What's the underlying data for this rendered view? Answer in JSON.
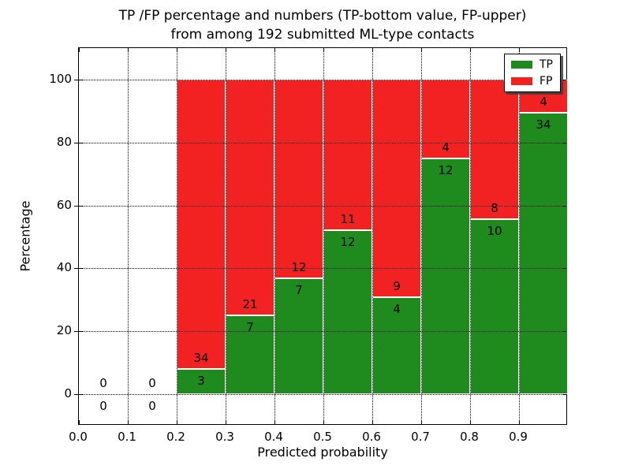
{
  "figure": {
    "title_line1": "TP /FP percentage and numbers (TP-bottom value, FP-upper)",
    "title_line2": "from among 192 submitted ML-type contacts"
  },
  "chart_data": {
    "type": "bar",
    "stacked": true,
    "normalized": "each bin scaled so TP+FP spans 0-100%, TP% = TP/(TP+FP)*100",
    "title": "TP /FP percentage and numbers (TP-bottom value, FP-upper)\nfrom among 192 submitted ML-type contacts",
    "xlabel": "Predicted probability",
    "ylabel": "Percentage",
    "xlim": [
      0.0,
      1.0
    ],
    "ylim": [
      -10,
      110
    ],
    "bin_width": 0.1,
    "xticks": [
      "0.0",
      "0.1",
      "0.2",
      "0.3",
      "0.4",
      "0.5",
      "0.6",
      "0.7",
      "0.8",
      "0.9"
    ],
    "yticks": [
      "0",
      "20",
      "40",
      "60",
      "80",
      "100"
    ],
    "grid": "dotted black, both axes, drawn above bars",
    "legend_position": "upper right",
    "categories": [
      "0.0-0.1",
      "0.1-0.2",
      "0.2-0.3",
      "0.3-0.4",
      "0.4-0.5",
      "0.5-0.6",
      "0.6-0.7",
      "0.7-0.8",
      "0.8-0.9",
      "0.9-1.0"
    ],
    "series": [
      {
        "name": "TP",
        "color": "#1f8b1f",
        "counts": [
          0,
          0,
          3,
          7,
          7,
          12,
          4,
          12,
          10,
          34
        ]
      },
      {
        "name": "FP",
        "color": "#f22222",
        "counts": [
          0,
          0,
          34,
          21,
          12,
          11,
          9,
          4,
          8,
          4
        ]
      }
    ],
    "tp_percent_per_bin": [
      0,
      0,
      8.1,
      25.0,
      36.8,
      52.2,
      30.8,
      75.0,
      55.6,
      89.5
    ],
    "total_contacts": 192,
    "bar_edge_color": "#ffffff",
    "text_color": "#000000"
  },
  "legend": {
    "items": [
      {
        "label": "TP",
        "color": "#1f8b1f"
      },
      {
        "label": "FP",
        "color": "#f22222"
      }
    ]
  }
}
